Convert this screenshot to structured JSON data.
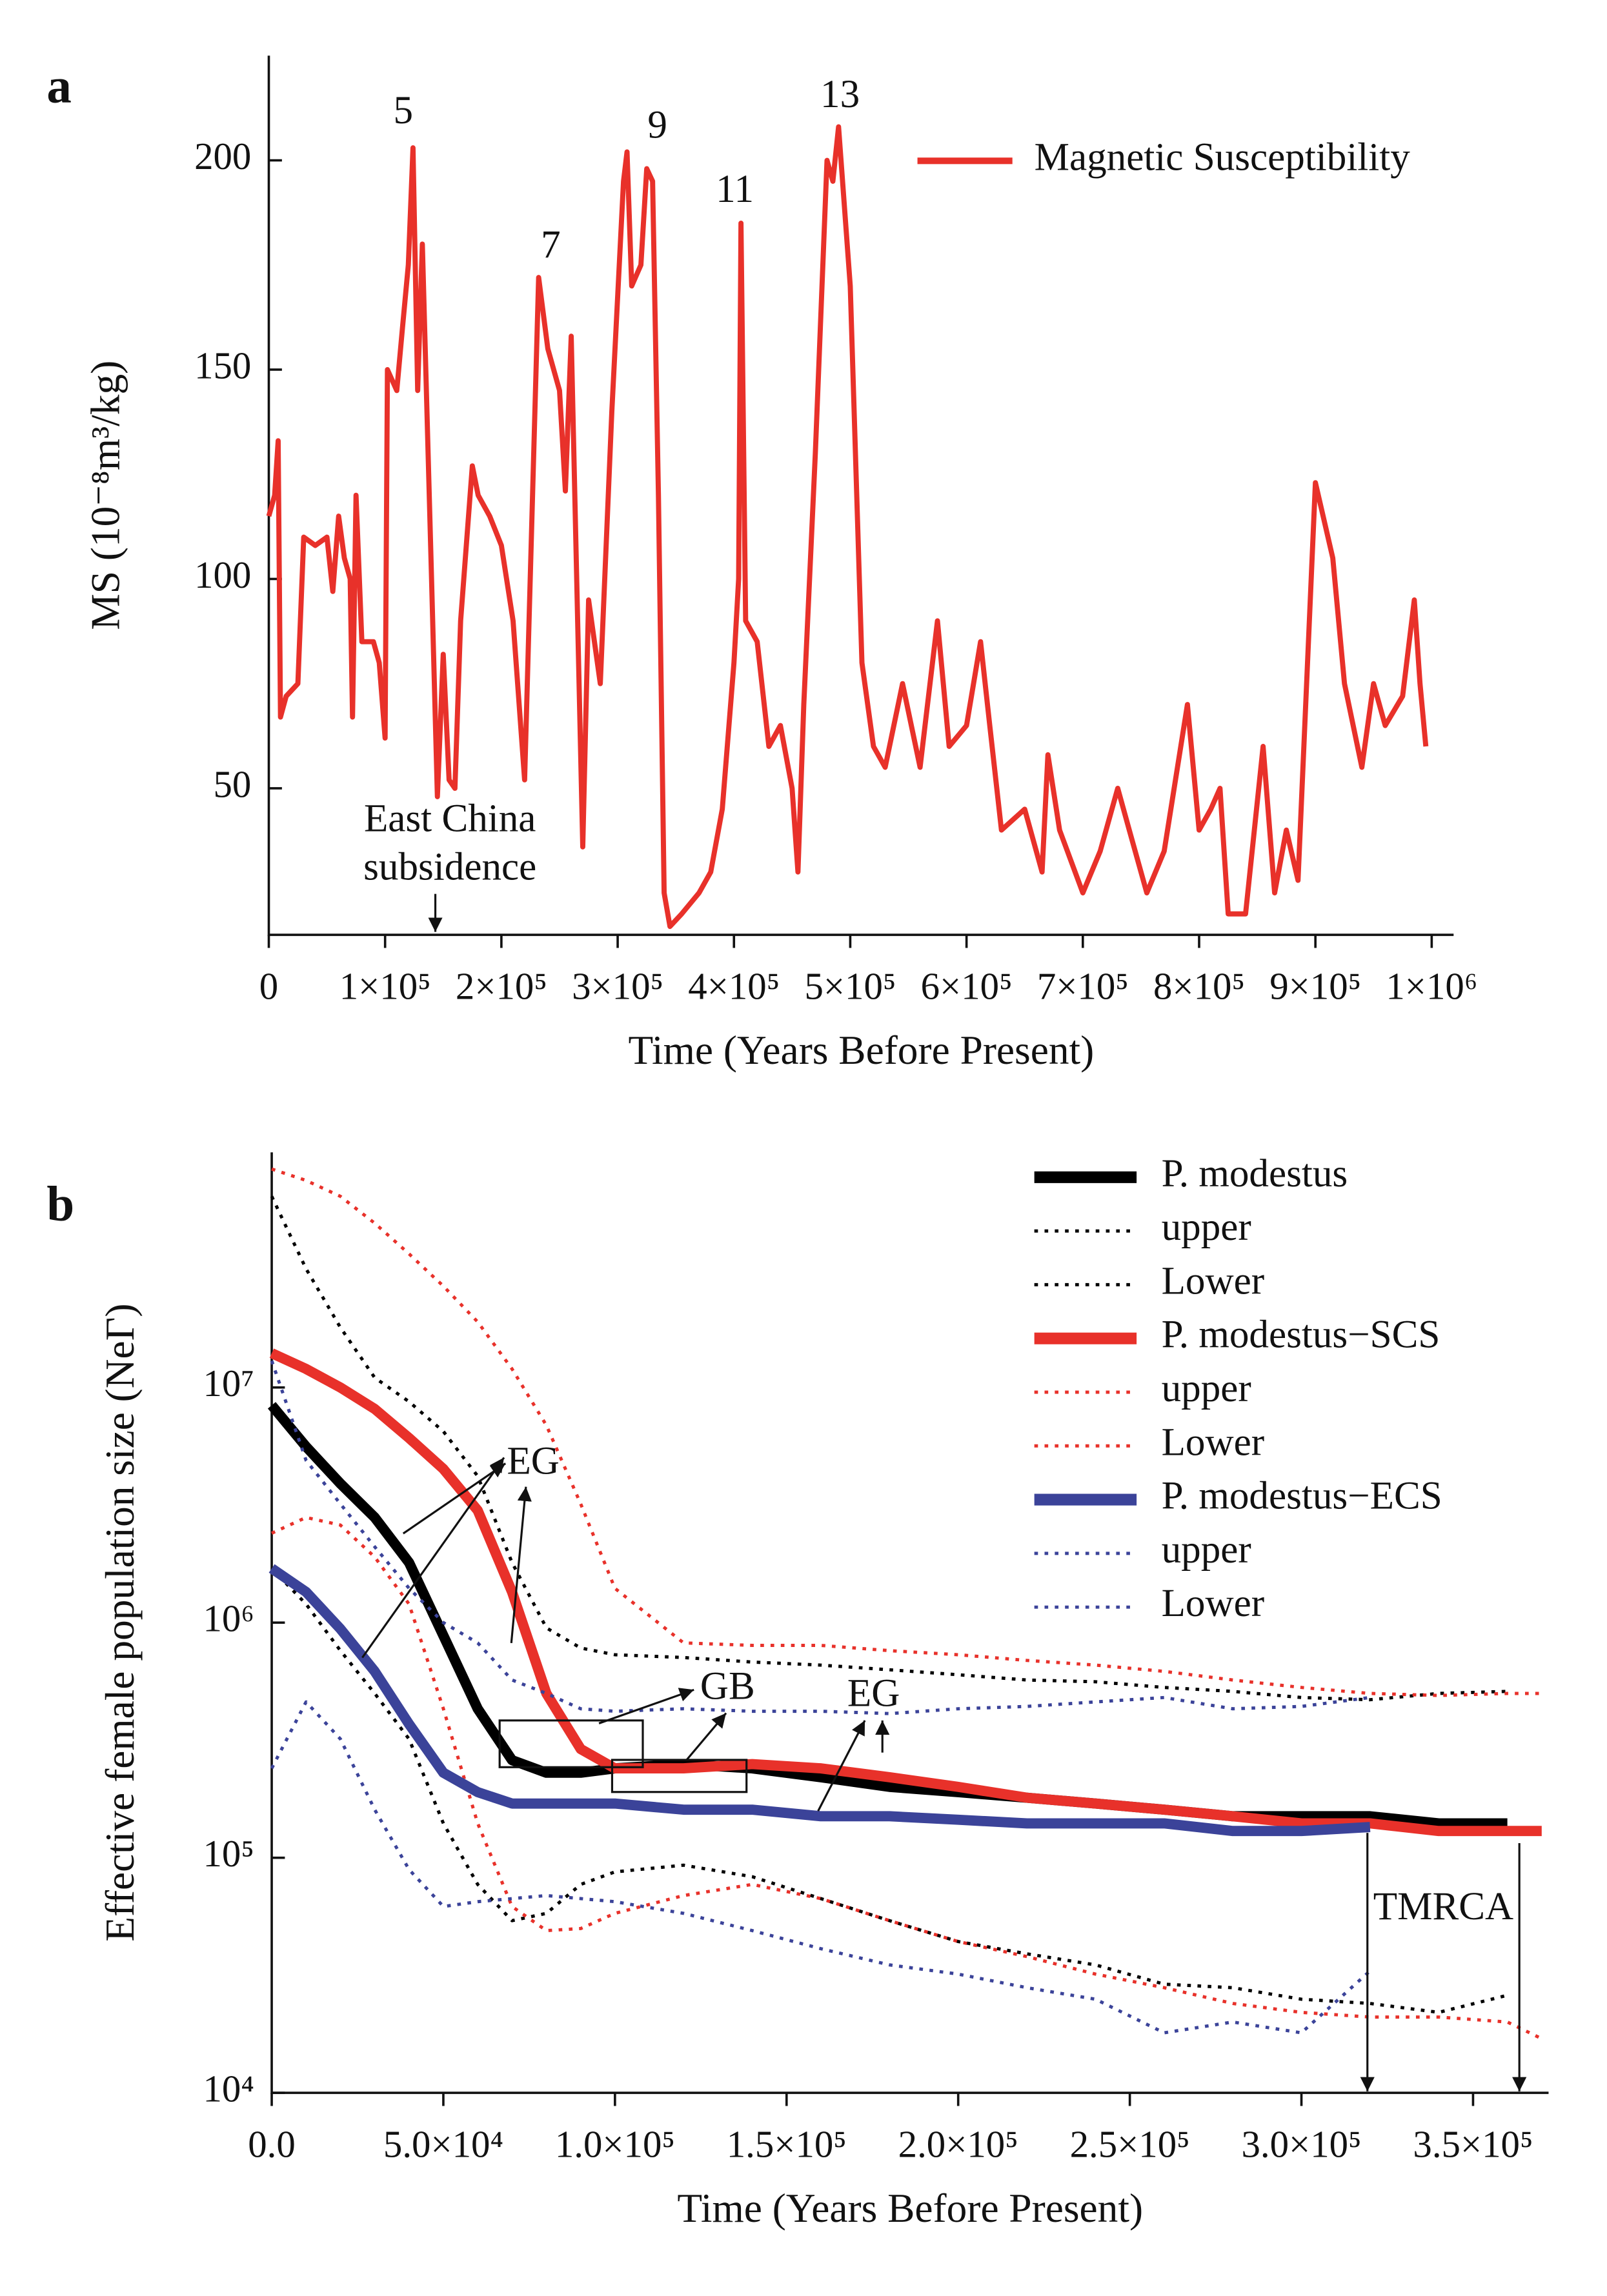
{
  "chart_data": [
    {
      "type": "line",
      "panel": "a",
      "xlabel": "Time (Years Before Present)",
      "ylabel": "MS (10⁻⁸m³/kg)",
      "xlim": [
        0,
        1000000
      ],
      "ylim": [
        15,
        225
      ],
      "xticks": [
        0,
        {
          "value": 100000,
          "label": "1×10⁵"
        },
        {
          "value": 200000,
          "label": "2×10⁵"
        },
        {
          "value": 300000,
          "label": "3×10⁵"
        },
        {
          "value": 400000,
          "label": "4×10⁵"
        },
        {
          "value": 500000,
          "label": "5×10⁵"
        },
        {
          "value": 600000,
          "label": "6×10⁵"
        },
        {
          "value": 700000,
          "label": "7×10⁵"
        },
        {
          "value": 800000,
          "label": "8×10⁵"
        },
        {
          "value": 900000,
          "label": "9×10⁵"
        },
        {
          "value": 1000000,
          "label": "1×10⁶"
        }
      ],
      "yticks": [
        50,
        100,
        150,
        200
      ],
      "annotations": [
        "5",
        "7",
        "9",
        "11",
        "13",
        "East China",
        "subsidence"
      ],
      "x": [
        0,
        5000,
        8000,
        10000,
        15000,
        25000,
        30000,
        40000,
        50000,
        55000,
        60000,
        65000,
        70000,
        72000,
        75000,
        80000,
        90000,
        95000,
        100000,
        102000,
        110000,
        115000,
        120000,
        124000,
        128000,
        132000,
        140000,
        145000,
        150000,
        155000,
        160000,
        165000,
        175000,
        180000,
        190000,
        200000,
        210000,
        220000,
        232000,
        240000,
        250000,
        255000,
        260000,
        270000,
        275000,
        285000,
        295000,
        305000,
        308000,
        312000,
        320000,
        325000,
        330000,
        335000,
        340000,
        345000,
        355000,
        370000,
        380000,
        390000,
        400000,
        404000,
        406000,
        410000,
        420000,
        430000,
        440000,
        450000,
        455000,
        460000,
        470000,
        480000,
        485000,
        490000,
        500000,
        510000,
        520000,
        530000,
        545000,
        560000,
        575000,
        585000,
        600000,
        612000,
        620000,
        630000,
        650000,
        665000,
        670000,
        680000,
        700000,
        715000,
        730000,
        740000,
        755000,
        770000,
        790000,
        800000,
        810000,
        818000,
        825000,
        840000,
        855000,
        865000,
        875000,
        885000,
        900000,
        915000,
        925000,
        940000,
        950000,
        960000,
        975000,
        985000,
        990000,
        995000
      ],
      "series": [
        {
          "name": "Magnetic Susceptibility",
          "color": "#e8312a",
          "line_style": "solid",
          "values": [
            115,
            120,
            133,
            67,
            72,
            75,
            110,
            108,
            110,
            97,
            115,
            105,
            100,
            67,
            120,
            85,
            85,
            80,
            62,
            150,
            145,
            160,
            175,
            203,
            145,
            180,
            100,
            48,
            82,
            52,
            50,
            90,
            127,
            120,
            115,
            108,
            90,
            52,
            172,
            155,
            145,
            121,
            158,
            36,
            95,
            75,
            140,
            195,
            202,
            170,
            175,
            198,
            195,
            120,
            25,
            17,
            20,
            25,
            30,
            45,
            80,
            100,
            185,
            90,
            85,
            60,
            65,
            50,
            30,
            70,
            130,
            200,
            195,
            208,
            170,
            80,
            60,
            55,
            75,
            55,
            90,
            60,
            65,
            85,
            65,
            40,
            45,
            30,
            58,
            40,
            25,
            35,
            50,
            40,
            25,
            35,
            70,
            40,
            45,
            50,
            20,
            20,
            60,
            25,
            40,
            28,
            123,
            105,
            75,
            55,
            75,
            65,
            72,
            95,
            75,
            60
          ]
        }
      ]
    },
    {
      "type": "line",
      "panel": "b",
      "xlabel": "Time (Years Before Present)",
      "ylabel": "Effective female population size (NeΓ)",
      "log_scale": true,
      "xlim": [
        0,
        372000
      ],
      "ylim": [
        10000,
        100000000
      ],
      "xticks": [
        {
          "value": 0,
          "label": "0.0"
        },
        {
          "value": 50000,
          "label": "5.0×10⁴"
        },
        {
          "value": 100000,
          "label": "1.0×10⁵"
        },
        {
          "value": 150000,
          "label": "1.5×10⁵"
        },
        {
          "value": 200000,
          "label": "2.0×10⁵"
        },
        {
          "value": 250000,
          "label": "2.5×10⁵"
        },
        {
          "value": 300000,
          "label": "3.0×10⁵"
        },
        {
          "value": 350000,
          "label": "3.5×10⁵"
        }
      ],
      "yticks": [
        {
          "value": 10000,
          "label": "10⁴"
        },
        {
          "value": 100000,
          "label": "10⁵"
        },
        {
          "value": 1000000,
          "label": "10⁶"
        },
        {
          "value": 10000000,
          "label": "10⁷"
        }
      ],
      "annotations": [
        "EG",
        "GB",
        "EG",
        "TMRCA"
      ],
      "x": [
        0,
        10000,
        20000,
        30000,
        40000,
        50000,
        60000,
        70000,
        80000,
        90000,
        100000,
        120000,
        140000,
        160000,
        180000,
        200000,
        220000,
        240000,
        260000,
        280000,
        300000,
        320000,
        340000,
        360000,
        370000
      ],
      "series": [
        {
          "name": "P. modestus",
          "color": "#000000",
          "line_style": "solid",
          "values": [
            8400000,
            5600000,
            3900000,
            2800000,
            1800000,
            880000,
            430000,
            260000,
            230000,
            230000,
            240000,
            250000,
            240000,
            220000,
            200000,
            190000,
            180000,
            170000,
            160000,
            150000,
            150000,
            150000,
            140000,
            140000,
            null
          ]
        },
        {
          "name": "upper",
          "color": "#000000",
          "line_style": "dotted",
          "values": [
            65000000,
            32000000,
            18000000,
            11000000,
            8700000,
            6500000,
            4200000,
            1800000,
            950000,
            780000,
            730000,
            710000,
            680000,
            660000,
            630000,
            600000,
            570000,
            560000,
            530000,
            510000,
            480000,
            470000,
            500000,
            510000,
            null
          ]
        },
        {
          "name": "Lower",
          "color": "#000000",
          "line_style": "dotted",
          "values": [
            1700000,
            1200000,
            760000,
            500000,
            320000,
            140000,
            77000,
            54000,
            58000,
            77000,
            87000,
            93000,
            83000,
            67000,
            54000,
            44000,
            39000,
            35000,
            29000,
            28000,
            25000,
            24000,
            22000,
            26000,
            null
          ]
        },
        {
          "name": "P. modestus−SCS",
          "color": "#e8312a",
          "line_style": "solid",
          "values": [
            14000000,
            12000000,
            10000000,
            8100000,
            6100000,
            4500000,
            3000000,
            1350000,
            500000,
            290000,
            240000,
            240000,
            250000,
            240000,
            220000,
            200000,
            180000,
            170000,
            160000,
            150000,
            140000,
            140000,
            130000,
            130000,
            130000
          ]
        },
        {
          "name": "upper",
          "color": "#e8312a",
          "line_style": "dotted",
          "values": [
            85000000,
            76000000,
            65000000,
            50000000,
            37000000,
            27000000,
            19000000,
            12000000,
            6900000,
            3200000,
            1400000,
            820000,
            800000,
            800000,
            760000,
            730000,
            690000,
            660000,
            620000,
            570000,
            530000,
            500000,
            490000,
            500000,
            500000
          ]
        },
        {
          "name": "Lower",
          "color": "#e8312a",
          "line_style": "dotted",
          "values": [
            2400000,
            2800000,
            2600000,
            1900000,
            1200000,
            430000,
            140000,
            62000,
            49000,
            50000,
            58000,
            69000,
            77000,
            67000,
            54000,
            44000,
            38000,
            32000,
            28000,
            24000,
            22000,
            21000,
            21000,
            20000,
            17000
          ]
        },
        {
          "name": "P. modestus−ECS",
          "color": "#3b4399",
          "line_style": "solid",
          "values": [
            1700000,
            1350000,
            940000,
            620000,
            370000,
            230000,
            190000,
            170000,
            170000,
            170000,
            170000,
            160000,
            160000,
            150000,
            150000,
            145000,
            140000,
            140000,
            140000,
            130000,
            130000,
            135000,
            null,
            null,
            null
          ]
        },
        {
          "name": "upper",
          "color": "#3b4399",
          "line_style": "dotted",
          "values": [
            13000000,
            4900000,
            3200000,
            2100000,
            1400000,
            1000000,
            820000,
            570000,
            500000,
            430000,
            420000,
            430000,
            420000,
            420000,
            410000,
            430000,
            440000,
            460000,
            480000,
            430000,
            440000,
            480000,
            null,
            null,
            null
          ]
        },
        {
          "name": "Lower",
          "color": "#3b4399",
          "line_style": "dotted",
          "values": [
            240000,
            460000,
            320000,
            160000,
            89000,
            62000,
            65000,
            67000,
            69000,
            67000,
            65000,
            58000,
            49000,
            41000,
            35000,
            32000,
            28000,
            25000,
            18000,
            20000,
            18000,
            33000,
            null,
            null,
            null
          ]
        }
      ]
    }
  ]
}
